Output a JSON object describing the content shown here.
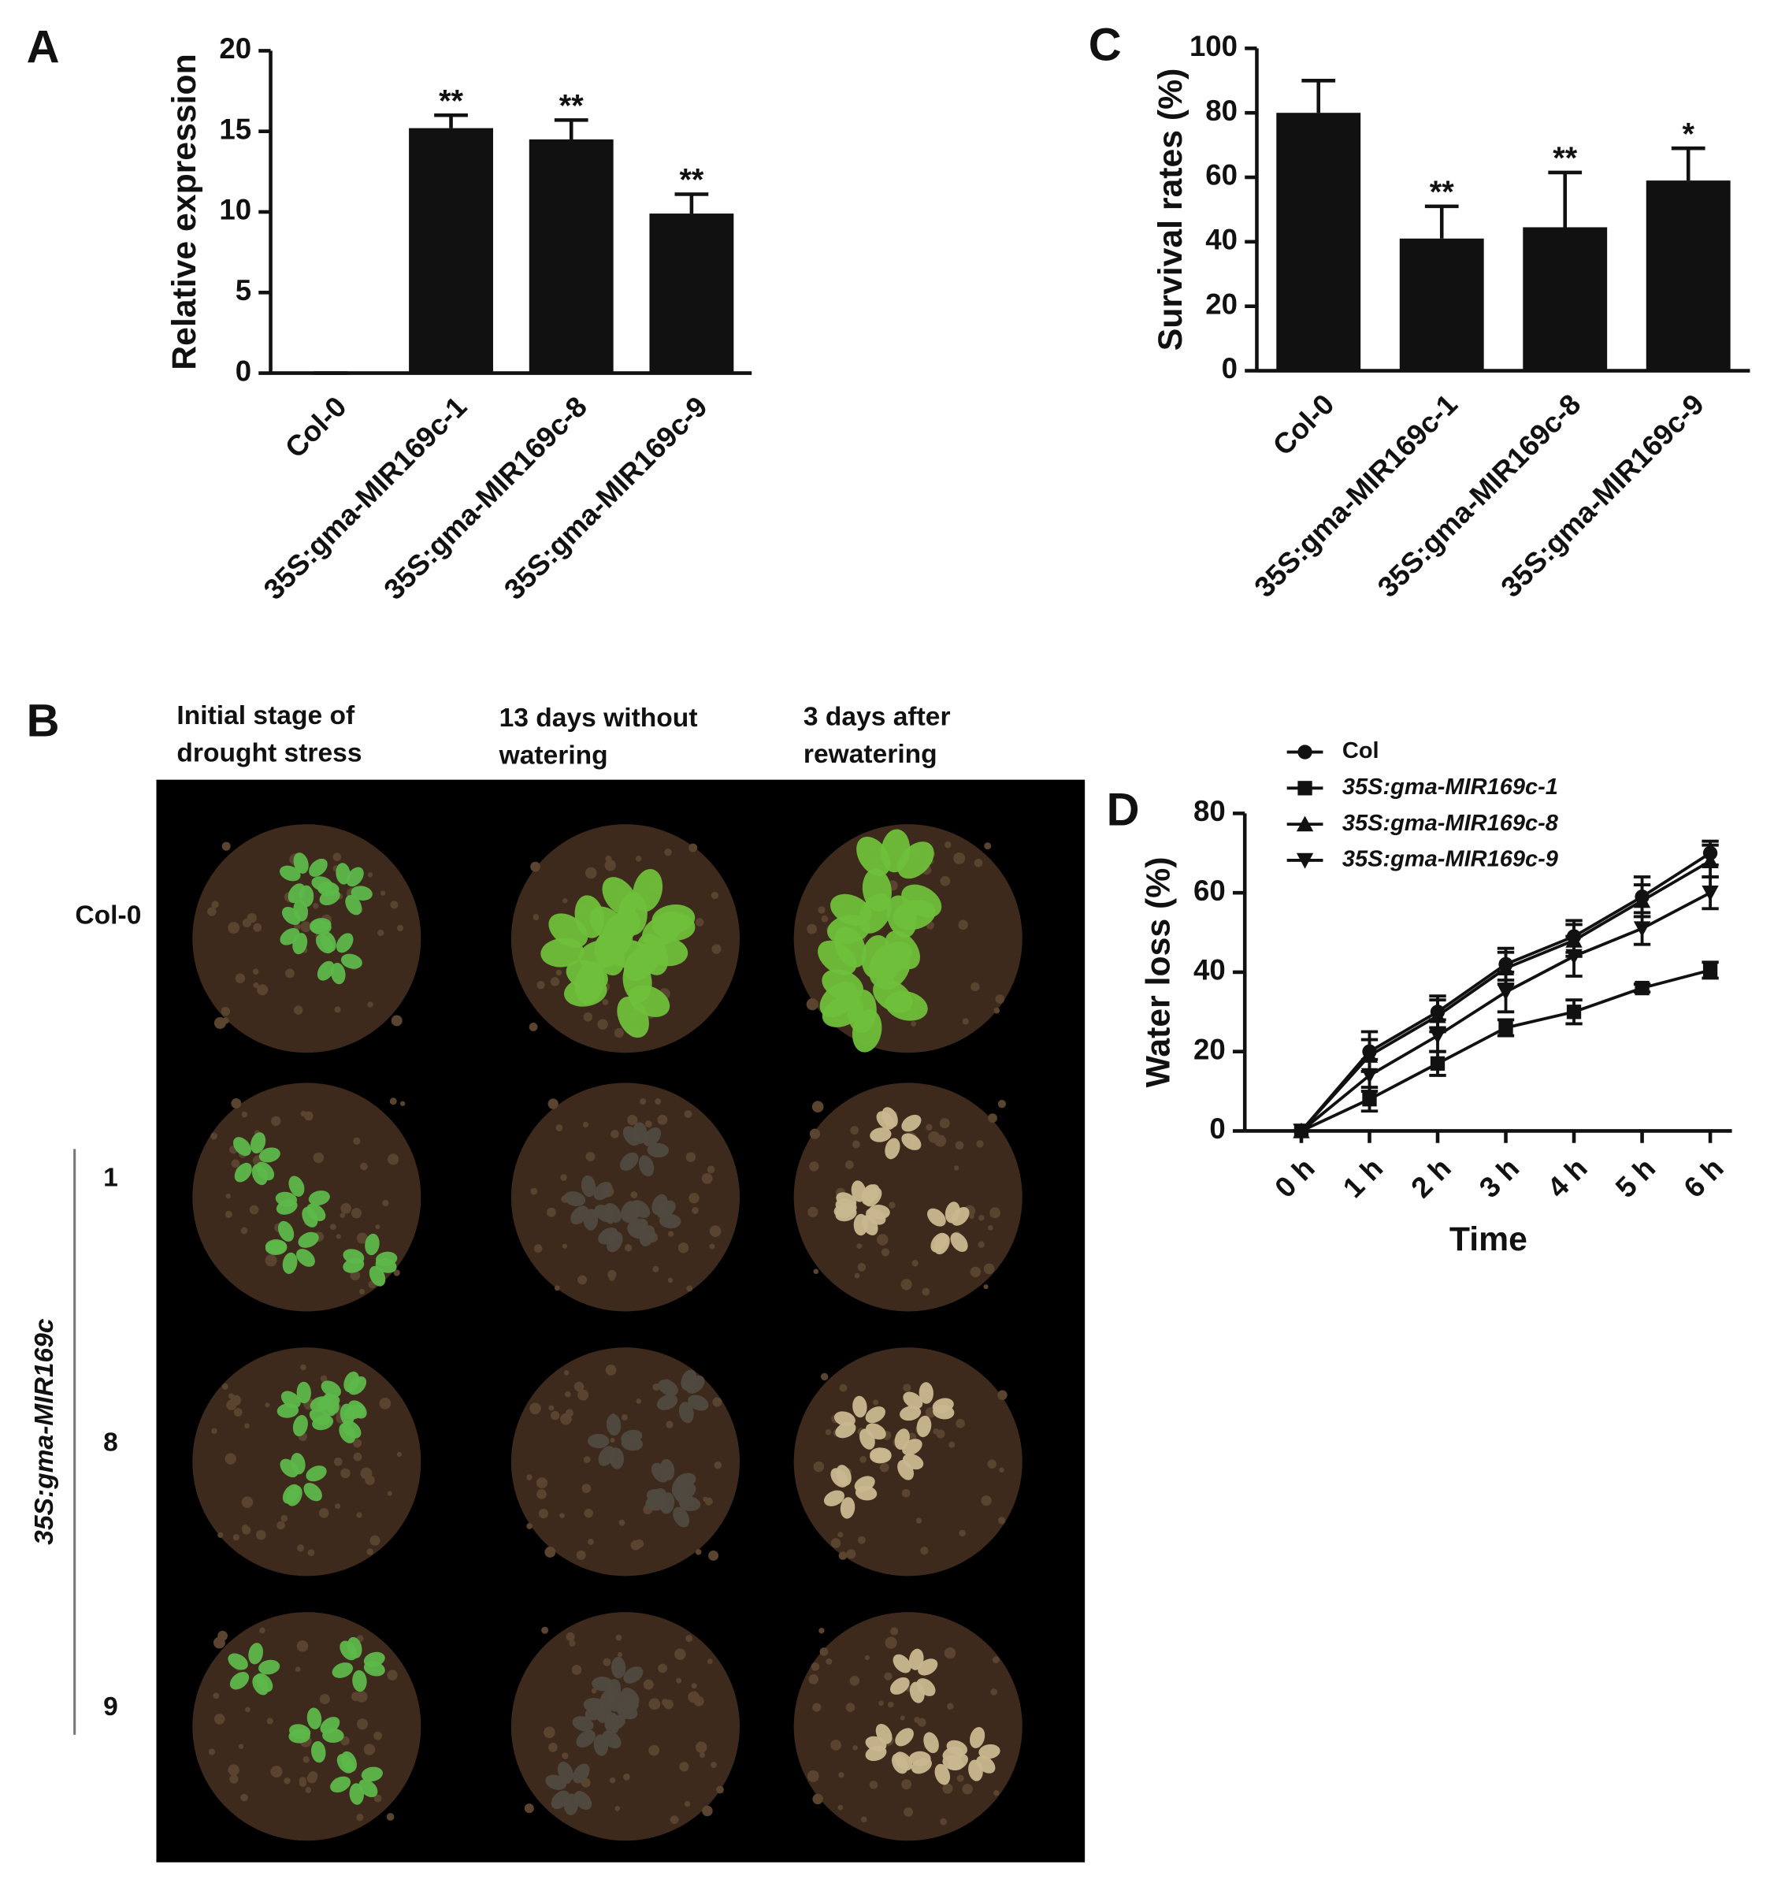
{
  "chart_data": [
    {
      "type": "bar",
      "panel_label": "A",
      "y_label": "Relative expression",
      "categories": [
        "Col-0",
        "35S:gma-MIR169c-1",
        "35S:gma-MIR169c-8",
        "35S:gma-MIR169c-9"
      ],
      "values": [
        0,
        15.2,
        14.5,
        9.9
      ],
      "errors": [
        0,
        0.8,
        1.2,
        1.2
      ],
      "significance": [
        null,
        "**",
        "**",
        "**"
      ],
      "color": "#111111",
      "ylim": [
        0,
        20
      ],
      "yticks": [
        0,
        5,
        10,
        15,
        20
      ]
    },
    {
      "type": "bar",
      "panel_label": "C",
      "y_label": "Survival rates (%)",
      "categories": [
        "Col-0",
        "35S:gma-MIR169c-1",
        "35S:gma-MIR169c-8",
        "35S:gma-MIR169c-9"
      ],
      "values": [
        80,
        41,
        44.5,
        59
      ],
      "errors": [
        10,
        10,
        17,
        10
      ],
      "significance": [
        null,
        "**",
        "**",
        "*"
      ],
      "color": "#111111",
      "ylim": [
        0,
        100
      ],
      "yticks": [
        0,
        20,
        40,
        60,
        80,
        100
      ]
    },
    {
      "type": "line",
      "panel_label": "D",
      "y_label": "Water loss (%)",
      "x_label": "Time",
      "categories": [
        "0 h",
        "1 h",
        "2 h",
        "3 h",
        "4 h",
        "5 h",
        "6 h"
      ],
      "ylim": [
        0,
        80
      ],
      "yticks": [
        0,
        20,
        40,
        60,
        80
      ],
      "series": [
        {
          "name": "Col",
          "color": "#111111",
          "marker": "circle",
          "font_style": "normal",
          "values": [
            0,
            20,
            30,
            42,
            49,
            59,
            70
          ],
          "errors": [
            0,
            5,
            4,
            4,
            4,
            5,
            3
          ]
        },
        {
          "name": "35S:gma-MIR169c-1",
          "color": "#111111",
          "marker": "square",
          "font_style": "italic",
          "values": [
            0,
            8,
            17,
            26,
            30,
            36,
            40.5
          ],
          "errors": [
            0,
            3,
            3,
            2,
            3,
            1,
            2
          ]
        },
        {
          "name": "35S:gma-MIR169c-8",
          "color": "#111111",
          "marker": "triangle-up",
          "font_style": "italic",
          "values": [
            0,
            19,
            29,
            41,
            48,
            58,
            68
          ],
          "errors": [
            0,
            4,
            4,
            4,
            4,
            4,
            4
          ]
        },
        {
          "name": "35S:gma-MIR169c-9",
          "color": "#111111",
          "marker": "triangle-down",
          "font_style": "italic",
          "values": [
            0,
            14,
            24,
            35,
            44,
            51,
            60
          ],
          "errors": [
            0,
            4,
            4,
            5,
            5,
            4,
            4
          ]
        }
      ]
    }
  ],
  "photo_panel": {
    "panel_label": "B",
    "column_headers": [
      [
        "Initial  stage of",
        "drought stress"
      ],
      [
        "13 days without",
        "watering"
      ],
      [
        "3 days after",
        "rewatering"
      ]
    ],
    "row_labels": [
      "Col-0",
      "1",
      "8",
      "9"
    ],
    "group_label": "35S:gma-MIR169c"
  }
}
